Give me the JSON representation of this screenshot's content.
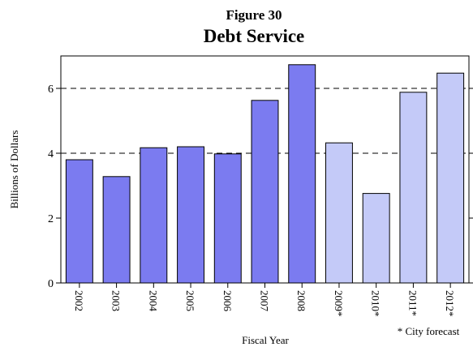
{
  "chart_data": {
    "type": "bar",
    "figure_label": "Figure 30",
    "title": "Debt Service",
    "xlabel": "Fiscal Year",
    "ylabel": "Billions of Dollars",
    "footnote": "* City forecast",
    "ylim": [
      0,
      7
    ],
    "yticks": [
      0,
      2,
      4,
      6
    ],
    "dashed_gridlines": [
      4,
      6
    ],
    "categories": [
      "2002",
      "2003",
      "2004",
      "2005",
      "2006",
      "2007",
      "2008",
      "2009*",
      "2010*",
      "2011*",
      "2012*"
    ],
    "values": [
      3.8,
      3.28,
      4.17,
      4.2,
      3.98,
      5.63,
      6.73,
      4.32,
      2.76,
      5.88,
      6.47
    ],
    "forecast": [
      false,
      false,
      false,
      false,
      false,
      false,
      false,
      true,
      true,
      true,
      true
    ],
    "colors": {
      "actual": "#7b7bf0",
      "forecast": "#c4caf8",
      "stroke": "#000000"
    }
  }
}
